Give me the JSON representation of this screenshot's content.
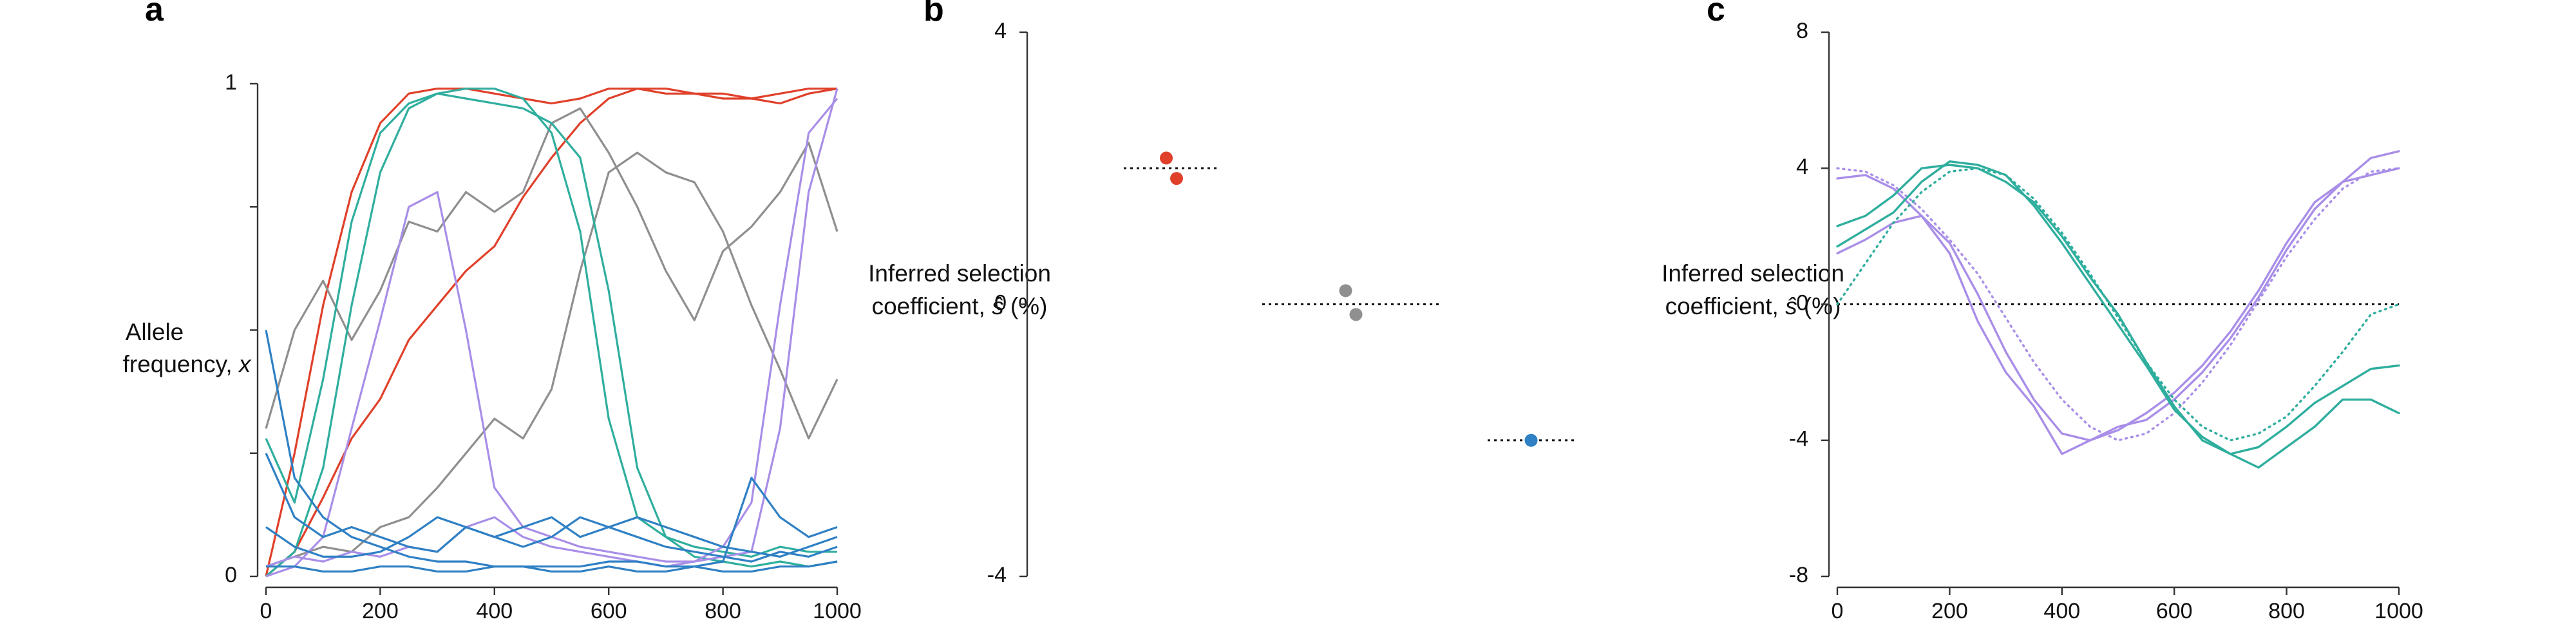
{
  "colors": {
    "red": "#e0402a",
    "gray": "#8f8f8f",
    "teal": "#2fae9e",
    "purple": "#a98ee8",
    "blue": "#2f80c4"
  },
  "panel_labels": {
    "a": "a",
    "b": "b",
    "c": "c"
  },
  "chart_data": [
    {
      "panel": "a",
      "type": "line",
      "xlabel": "",
      "ylabel_line1": "Allele",
      "ylabel_line2_main": "frequency, ",
      "ylabel_line2_var": "x",
      "xlim": [
        0,
        1000
      ],
      "ylim": [
        0,
        1
      ],
      "xticks": [
        "0",
        "200",
        "400",
        "600",
        "800",
        "1000"
      ],
      "yticks": [
        "0",
        "1"
      ],
      "x": [
        0,
        50,
        100,
        150,
        200,
        250,
        300,
        350,
        400,
        450,
        500,
        550,
        600,
        650,
        700,
        750,
        800,
        850,
        900,
        950,
        1000
      ],
      "series": [
        {
          "color": "red",
          "values": [
            0.0,
            0.25,
            0.55,
            0.78,
            0.92,
            0.98,
            0.99,
            0.99,
            0.98,
            0.97,
            0.96,
            0.97,
            0.99,
            0.99,
            0.98,
            0.98,
            0.97,
            0.97,
            0.96,
            0.98,
            0.99
          ]
        },
        {
          "color": "red",
          "values": [
            0.0,
            0.05,
            0.16,
            0.28,
            0.36,
            0.48,
            0.55,
            0.62,
            0.67,
            0.77,
            0.85,
            0.92,
            0.97,
            0.99,
            0.99,
            0.98,
            0.98,
            0.97,
            0.98,
            0.99,
            0.99
          ]
        },
        {
          "color": "gray",
          "values": [
            0.3,
            0.5,
            0.6,
            0.48,
            0.58,
            0.72,
            0.7,
            0.78,
            0.74,
            0.78,
            0.92,
            0.95,
            0.86,
            0.75,
            0.62,
            0.52,
            0.66,
            0.71,
            0.78,
            0.88,
            0.7
          ]
        },
        {
          "color": "gray",
          "values": [
            0.02,
            0.04,
            0.06,
            0.05,
            0.1,
            0.12,
            0.18,
            0.25,
            0.32,
            0.28,
            0.38,
            0.62,
            0.82,
            0.86,
            0.82,
            0.8,
            0.7,
            0.55,
            0.42,
            0.28,
            0.4
          ]
        },
        {
          "color": "teal",
          "values": [
            0.28,
            0.15,
            0.4,
            0.72,
            0.9,
            0.96,
            0.98,
            0.99,
            0.99,
            0.97,
            0.9,
            0.7,
            0.32,
            0.12,
            0.08,
            0.06,
            0.05,
            0.04,
            0.06,
            0.05,
            0.05
          ]
        },
        {
          "color": "teal",
          "values": [
            0.0,
            0.05,
            0.22,
            0.55,
            0.82,
            0.95,
            0.98,
            0.97,
            0.96,
            0.95,
            0.92,
            0.85,
            0.58,
            0.22,
            0.08,
            0.04,
            0.03,
            0.02,
            0.03,
            0.02,
            0.03
          ]
        },
        {
          "color": "purple",
          "values": [
            0.0,
            0.02,
            0.08,
            0.3,
            0.52,
            0.75,
            0.78,
            0.5,
            0.18,
            0.1,
            0.08,
            0.06,
            0.05,
            0.04,
            0.03,
            0.03,
            0.04,
            0.05,
            0.3,
            0.78,
            0.99
          ]
        },
        {
          "color": "purple",
          "values": [
            0.02,
            0.04,
            0.03,
            0.05,
            0.04,
            0.06,
            0.05,
            0.1,
            0.12,
            0.08,
            0.06,
            0.05,
            0.04,
            0.03,
            0.02,
            0.03,
            0.06,
            0.15,
            0.55,
            0.9,
            0.97
          ]
        },
        {
          "color": "blue",
          "values": [
            0.5,
            0.2,
            0.12,
            0.08,
            0.06,
            0.04,
            0.03,
            0.03,
            0.02,
            0.02,
            0.02,
            0.02,
            0.03,
            0.03,
            0.02,
            0.02,
            0.03,
            0.2,
            0.12,
            0.08,
            0.1
          ]
        },
        {
          "color": "blue",
          "values": [
            0.25,
            0.12,
            0.08,
            0.1,
            0.08,
            0.06,
            0.05,
            0.1,
            0.08,
            0.1,
            0.12,
            0.08,
            0.1,
            0.12,
            0.1,
            0.08,
            0.06,
            0.05,
            0.04,
            0.06,
            0.08
          ]
        },
        {
          "color": "blue",
          "values": [
            0.1,
            0.06,
            0.04,
            0.04,
            0.05,
            0.08,
            0.12,
            0.1,
            0.08,
            0.06,
            0.08,
            0.12,
            0.1,
            0.08,
            0.06,
            0.05,
            0.04,
            0.03,
            0.05,
            0.04,
            0.06
          ]
        },
        {
          "color": "blue",
          "values": [
            0.02,
            0.02,
            0.01,
            0.01,
            0.02,
            0.02,
            0.01,
            0.01,
            0.02,
            0.02,
            0.01,
            0.01,
            0.02,
            0.01,
            0.01,
            0.02,
            0.01,
            0.01,
            0.02,
            0.02,
            0.03
          ]
        }
      ]
    },
    {
      "panel": "b",
      "type": "scatter",
      "xlabel": "",
      "ylabel_line1": "Inferred selection",
      "ylabel_line2_main": "coefficient, ",
      "ylabel_line2_var": "ŝ",
      "ylabel_line2_unit": " (%)",
      "ylim": [
        -4,
        4
      ],
      "yticks": [
        "4",
        "0",
        "-4"
      ],
      "groups": [
        {
          "color": "red",
          "true_value": 2,
          "estimates": [
            2.15,
            1.85
          ]
        },
        {
          "color": "gray",
          "true_value": 0,
          "estimates": [
            0.2,
            -0.15
          ]
        },
        {
          "color": "blue",
          "true_value": -2,
          "estimates": [
            -2.0
          ]
        }
      ]
    },
    {
      "panel": "c",
      "type": "line",
      "xlabel": "",
      "ylabel_line1": "Inferred selection",
      "ylabel_line2_main": "coefficient, ",
      "ylabel_line2_var": "ŝ",
      "ylabel_line2_unit": " (%)",
      "xlim": [
        0,
        1000
      ],
      "ylim": [
        -8,
        8
      ],
      "xticks": [
        "0",
        "200",
        "400",
        "600",
        "800",
        "1000"
      ],
      "yticks": [
        "8",
        "4",
        "0",
        "-4",
        "-8"
      ],
      "x": [
        0,
        50,
        100,
        150,
        200,
        250,
        300,
        350,
        400,
        450,
        500,
        550,
        600,
        650,
        700,
        750,
        800,
        850,
        900,
        950,
        1000
      ],
      "series": [
        {
          "color": "purple",
          "style": "dotted",
          "values": [
            4.0,
            3.9,
            3.5,
            2.8,
            1.9,
            0.9,
            -0.4,
            -1.7,
            -2.8,
            -3.6,
            -4.0,
            -3.8,
            -3.2,
            -2.3,
            -1.2,
            0.1,
            1.4,
            2.5,
            3.4,
            3.9,
            4.0
          ]
        },
        {
          "color": "purple",
          "style": "solid",
          "values": [
            3.7,
            3.8,
            3.4,
            2.6,
            1.8,
            0.3,
            -1.4,
            -2.8,
            -3.8,
            -4.0,
            -3.6,
            -3.4,
            -2.8,
            -2.0,
            -1.0,
            0.2,
            1.6,
            2.8,
            3.6,
            4.3,
            4.5
          ]
        },
        {
          "color": "purple",
          "style": "solid",
          "values": [
            1.5,
            1.9,
            2.4,
            2.6,
            1.5,
            -0.5,
            -2.0,
            -3.0,
            -4.4,
            -4.0,
            -3.7,
            -3.2,
            -2.6,
            -1.8,
            -0.8,
            0.4,
            1.8,
            3.0,
            3.6,
            3.8,
            4.0
          ]
        },
        {
          "color": "teal",
          "style": "dotted",
          "values": [
            0.0,
            1.2,
            2.4,
            3.3,
            3.9,
            4.0,
            3.8,
            3.1,
            2.1,
            0.9,
            -0.4,
            -1.7,
            -2.8,
            -3.6,
            -4.0,
            -3.8,
            -3.3,
            -2.4,
            -1.4,
            -0.3,
            0.0
          ]
        },
        {
          "color": "teal",
          "style": "solid",
          "values": [
            2.3,
            2.6,
            3.2,
            4.0,
            4.1,
            4.0,
            3.6,
            3.0,
            2.0,
            0.8,
            -0.3,
            -1.7,
            -3.0,
            -4.0,
            -4.4,
            -4.2,
            -3.6,
            -2.9,
            -2.4,
            -1.9,
            -1.8
          ]
        },
        {
          "color": "teal",
          "style": "solid",
          "values": [
            1.7,
            2.2,
            2.7,
            3.6,
            4.2,
            4.1,
            3.8,
            2.9,
            1.8,
            0.6,
            -0.6,
            -1.8,
            -3.1,
            -3.9,
            -4.4,
            -4.8,
            -4.2,
            -3.6,
            -2.8,
            -2.8,
            -3.2
          ]
        }
      ]
    }
  ]
}
